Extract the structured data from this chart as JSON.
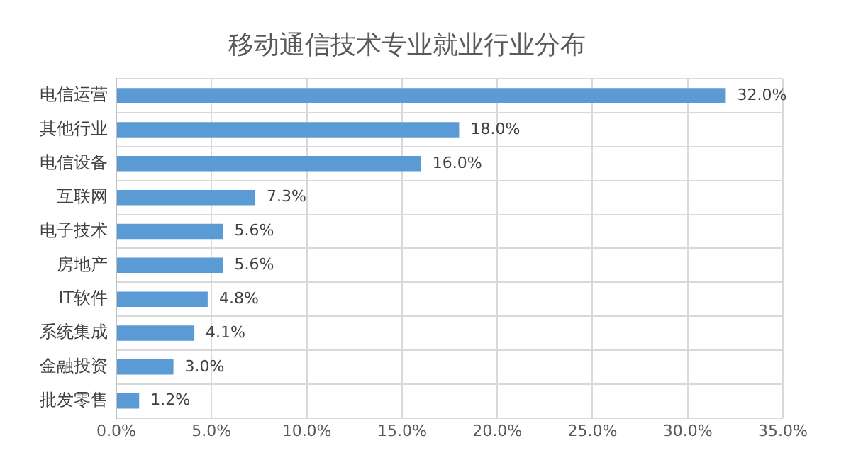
{
  "chart_data": {
    "type": "bar",
    "orientation": "horizontal",
    "title": "移动通信技术专业就业行业分布",
    "categories": [
      "电信运营",
      "其他行业",
      "电信设备",
      "互联网",
      "电子技术",
      "房地产",
      "IT软件",
      "系统集成",
      "金融投资",
      "批发零售"
    ],
    "values": [
      32.0,
      18.0,
      16.0,
      7.3,
      5.6,
      5.6,
      4.8,
      4.1,
      3.0,
      1.2
    ],
    "value_labels": [
      "32.0%",
      "18.0%",
      "16.0%",
      "7.3%",
      "5.6%",
      "5.6%",
      "4.8%",
      "4.1%",
      "3.0%",
      "1.2%"
    ],
    "color": "#5b9bd5",
    "xlim": [
      0,
      35
    ],
    "xticks": [
      {
        "value": 0,
        "label": "0.0%"
      },
      {
        "value": 5,
        "label": "5.0%"
      },
      {
        "value": 10,
        "label": "10.0%"
      },
      {
        "value": 15,
        "label": "15.0%"
      },
      {
        "value": 20,
        "label": "20.0%"
      },
      {
        "value": 25,
        "label": "25.0%"
      },
      {
        "value": 30,
        "label": "30.0%"
      },
      {
        "value": 35,
        "label": "35.0%"
      }
    ],
    "grid": true,
    "legend": false
  }
}
